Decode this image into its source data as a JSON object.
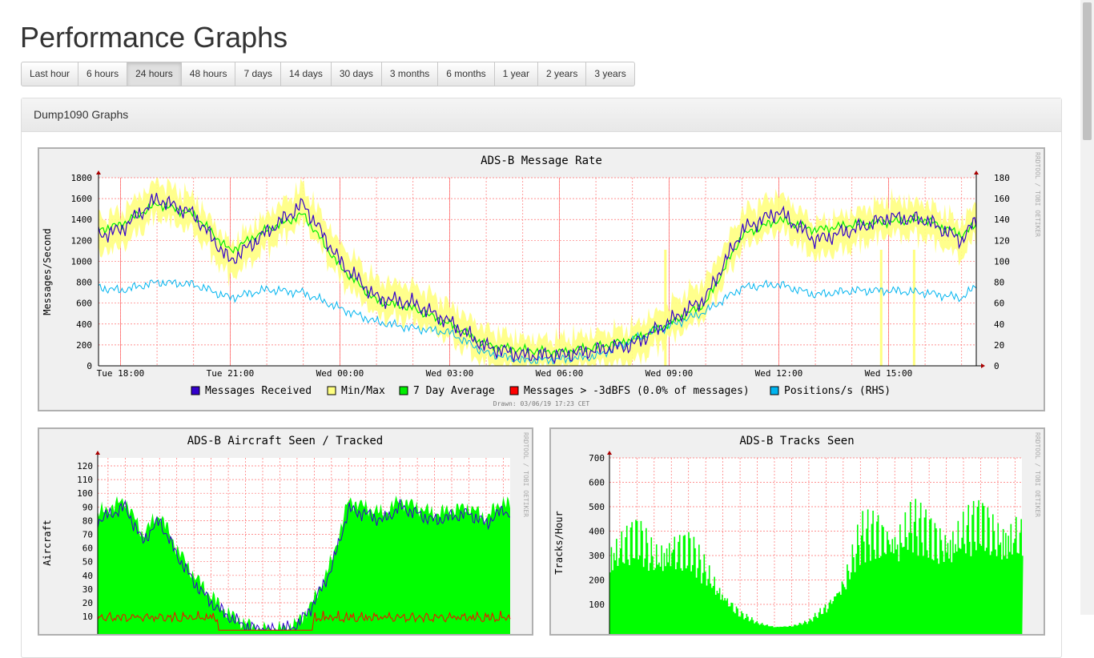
{
  "page": {
    "title": "Performance Graphs"
  },
  "ranges": {
    "buttons": [
      {
        "label": "Last hour"
      },
      {
        "label": "6 hours"
      },
      {
        "label": "24 hours",
        "active": true
      },
      {
        "label": "48 hours"
      },
      {
        "label": "7 days"
      },
      {
        "label": "14 days"
      },
      {
        "label": "30 days"
      },
      {
        "label": "3 months"
      },
      {
        "label": "6 months"
      },
      {
        "label": "1 year"
      },
      {
        "label": "2 years"
      },
      {
        "label": "3 years"
      }
    ]
  },
  "panel": {
    "heading": "Dump1090 Graphs"
  },
  "watermark": "RRDTOOL / TOBI OETIKER",
  "colors": {
    "messages": "#3300cc",
    "minmax": "#ffff80",
    "avg": "#00ee00",
    "strong": "#ff0000",
    "positions": "#00b4ef",
    "grid": "#ff6f6f",
    "aircraft_fill": "#00ff00",
    "tracks_fill": "#00ff00"
  },
  "chart_data": [
    {
      "type": "line",
      "title": "ADS-B Message Rate",
      "ylabel": "Messages/Second",
      "ylim": [
        0,
        1800
      ],
      "yticks": [
        0,
        200,
        400,
        600,
        800,
        1000,
        1200,
        1400,
        1600,
        1800
      ],
      "y2ticks": [
        0,
        20,
        40,
        60,
        80,
        100,
        120,
        140,
        160,
        180
      ],
      "xticks": [
        "Tue 18:00",
        "Tue 21:00",
        "Wed 00:00",
        "Wed 03:00",
        "Wed 06:00",
        "Wed 09:00",
        "Wed 12:00",
        "Wed 15:00"
      ],
      "x_hours": [
        17.4,
        18,
        19,
        20,
        21,
        22,
        23,
        24,
        25,
        26,
        27,
        28,
        29,
        30,
        31,
        32,
        33,
        34,
        35,
        36,
        37,
        38,
        39,
        40,
        41,
        41.4
      ],
      "legend": [
        {
          "label": "Messages Received",
          "color_key": "messages"
        },
        {
          "label": "Min/Max",
          "color_key": "minmax"
        },
        {
          "label": "7 Day Average",
          "color_key": "avg"
        },
        {
          "label": "Messages > -3dBFS (0.0% of messages)",
          "color_key": "strong"
        },
        {
          "label": "Positions/s (RHS)",
          "color_key": "positions"
        }
      ],
      "drawn": "Drawn: 03/06/19 17:23 CET",
      "series": [
        {
          "name": "Messages Received",
          "values": [
            1250,
            1300,
            1600,
            1450,
            1000,
            1280,
            1550,
            1000,
            650,
            600,
            420,
            180,
            100,
            100,
            150,
            200,
            420,
            650,
            1300,
            1480,
            1200,
            1300,
            1420,
            1400,
            1200,
            1400
          ]
        },
        {
          "name": "7 Day Average",
          "values": [
            1300,
            1350,
            1550,
            1450,
            1100,
            1300,
            1450,
            950,
            620,
            550,
            400,
            200,
            150,
            130,
            180,
            250,
            400,
            600,
            1250,
            1400,
            1300,
            1350,
            1380,
            1400,
            1250,
            1350
          ]
        },
        {
          "name": "Positions/s (RHS)",
          "values": [
            75,
            72,
            80,
            78,
            65,
            73,
            70,
            55,
            42,
            36,
            32,
            12,
            5,
            6,
            9,
            25,
            38,
            52,
            75,
            78,
            68,
            72,
            72,
            70,
            65,
            76
          ]
        }
      ]
    },
    {
      "type": "area",
      "title": "ADS-B Aircraft Seen / Tracked",
      "ylabel": "Aircraft",
      "ylim": [
        0,
        125
      ],
      "yticks": [
        10,
        20,
        30,
        40,
        50,
        60,
        70,
        80,
        90,
        100,
        110,
        120
      ],
      "x_hours": [
        17.4,
        19,
        20,
        21,
        22,
        23,
        24,
        25,
        26,
        27,
        28,
        29,
        30,
        31,
        32,
        33,
        34,
        35,
        36,
        37,
        38,
        39,
        40,
        41,
        41.4
      ],
      "series": [
        {
          "name": "Seen",
          "values": [
            85,
            95,
            70,
            85,
            60,
            40,
            25,
            12,
            5,
            0,
            0,
            5,
            22,
            50,
            95,
            90,
            85,
            95,
            90,
            85,
            88,
            90,
            82,
            95,
            90
          ]
        },
        {
          "name": "Tracked",
          "values": [
            80,
            90,
            65,
            80,
            55,
            35,
            20,
            10,
            3,
            0,
            0,
            3,
            20,
            45,
            88,
            85,
            80,
            90,
            85,
            80,
            83,
            85,
            78,
            88,
            85
          ]
        }
      ]
    },
    {
      "type": "bar",
      "title": "ADS-B Tracks Seen",
      "ylabel": "Tracks/Hour",
      "ylim": [
        0,
        700
      ],
      "yticks": [
        100,
        200,
        300,
        400,
        500,
        600,
        700
      ],
      "x_hours": [
        17.4,
        19,
        20,
        21,
        22,
        23,
        24,
        25,
        26,
        27,
        28,
        29,
        30,
        31,
        32,
        33,
        34,
        35,
        36,
        37,
        38,
        39,
        40,
        41,
        41.4
      ],
      "series": [
        {
          "name": "Tracks",
          "values": [
            420,
            480,
            380,
            450,
            420,
            300,
            180,
            80,
            30,
            10,
            15,
            40,
            120,
            250,
            480,
            520,
            480,
            550,
            500,
            470,
            520,
            560,
            500,
            520,
            480
          ]
        }
      ]
    }
  ]
}
